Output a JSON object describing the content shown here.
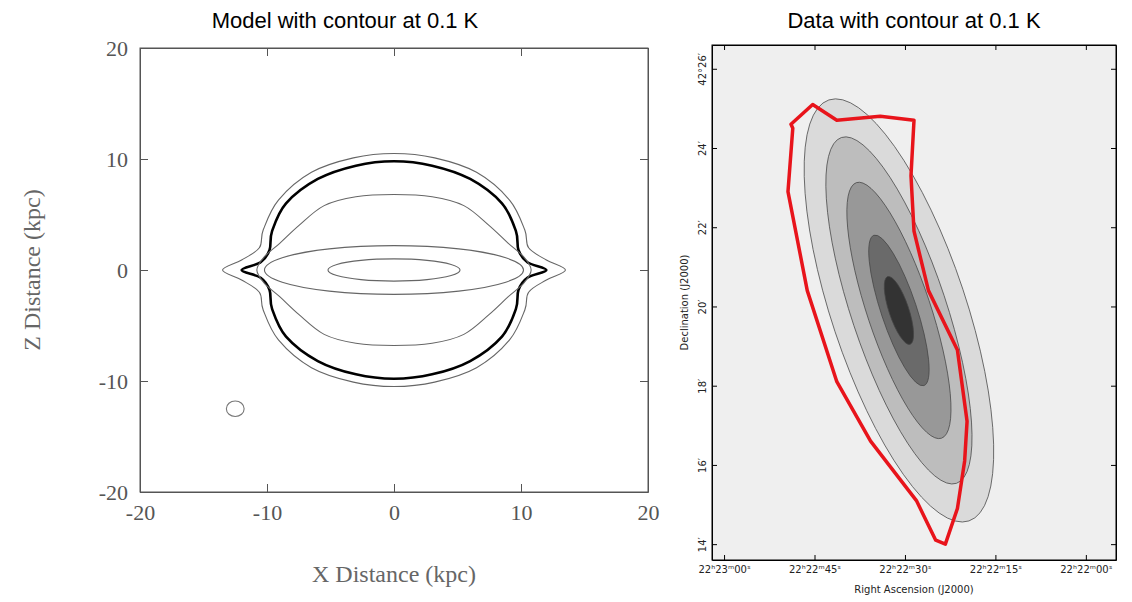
{
  "chart_data": [
    {
      "type": "contour",
      "title": "Model with contour at 0.1 K",
      "x_label": "X Distance (kpc)",
      "y_label": "Z Distance (kpc)",
      "xlim": [
        -20,
        20
      ],
      "ylim": [
        -20,
        20
      ],
      "xticks": [
        -20,
        -10,
        0,
        10,
        20
      ],
      "yticks": [
        -20,
        -10,
        0,
        10,
        20
      ],
      "series": [
        {
          "line_style": "thin",
          "color": "#666666",
          "x": [
            13.5,
            12,
            10.6,
            10.3,
            9.1,
            6.5,
            3.2,
            0,
            -3.2,
            -6.5,
            -9.1,
            -10.3,
            -10.6,
            -12,
            -13.5,
            -12,
            -10.6,
            -10.3,
            -9.1,
            -6.5,
            -3.2,
            0,
            3.2,
            6.5,
            9.1,
            10.3,
            10.6,
            12
          ],
          "y": [
            0,
            0.9,
            2,
            3.6,
            6.3,
            8.8,
            10.1,
            10.5,
            10.1,
            8.8,
            6.3,
            3.6,
            2,
            0.9,
            0,
            -0.9,
            -2,
            -3.6,
            -6.3,
            -8.8,
            -10.1,
            -10.5,
            -10.1,
            -8.8,
            -6.3,
            -3.6,
            -2,
            -0.9
          ]
        },
        {
          "line_style": "thick",
          "color": "#000000",
          "x": [
            12,
            10.5,
            9.8,
            9.6,
            8.5,
            6,
            3,
            0,
            -3,
            -6,
            -8.5,
            -9.6,
            -9.8,
            -10.5,
            -12,
            -10.5,
            -9.8,
            -9.6,
            -8.5,
            -6,
            -3,
            0,
            3,
            6,
            8.5,
            9.6,
            9.8,
            10.5
          ],
          "y": [
            0,
            0.7,
            1.8,
            3.5,
            6,
            8.2,
            9.4,
            9.8,
            9.4,
            8.2,
            6,
            3.5,
            1.8,
            0.7,
            0,
            -0.7,
            -1.8,
            -3.5,
            -6,
            -8.2,
            -9.4,
            -9.8,
            -9.4,
            -8.2,
            -6,
            -3.5,
            -1.8,
            -0.7
          ]
        },
        {
          "line_style": "thin",
          "color": "#666666",
          "x": [
            10.8,
            10.2,
            9,
            7.5,
            5.5,
            3,
            0,
            -3,
            -5.5,
            -7.5,
            -9,
            -10.2,
            -10.8,
            -10.2,
            -9,
            -7.5,
            -5.5,
            -3,
            0,
            3,
            5.5,
            7.5,
            9,
            10.2
          ],
          "y": [
            0,
            1.2,
            2.4,
            4,
            5.8,
            6.6,
            6.8,
            6.6,
            5.8,
            4,
            2.4,
            1.2,
            0,
            -1.2,
            -2.4,
            -4,
            -5.8,
            -6.6,
            -6.8,
            -6.6,
            -5.8,
            -4,
            -2.4,
            -1.2
          ]
        },
        {
          "line_style": "thin",
          "color": "#666666",
          "x": [
            10.2,
            8.8,
            5.1,
            0,
            -5.1,
            -8.8,
            -10.2,
            -8.8,
            -5.1,
            0,
            5.1,
            8.8
          ],
          "y": [
            0,
            1.1,
            1.9,
            2.2,
            1.9,
            1.1,
            0,
            -1.1,
            -1.9,
            -2.2,
            -1.9,
            -1.1
          ]
        },
        {
          "line_style": "thin",
          "color": "#666666",
          "x": [
            5.2,
            4.5,
            2.6,
            0,
            -2.6,
            -4.5,
            -5.2,
            -4.5,
            -2.6,
            0,
            2.6,
            4.5
          ],
          "y": [
            0,
            0.5,
            0.87,
            1,
            0.87,
            0.5,
            0,
            -0.5,
            -0.87,
            -1,
            -0.87,
            -0.5
          ]
        }
      ],
      "beam": {
        "x": -12.5,
        "y": -12.5,
        "diameter": 1.4
      }
    },
    {
      "type": "image",
      "title": "Data with contour at 0.1 K",
      "x_label": "Right Ascension (J2000)",
      "y_label": "Declination (J2000)",
      "xlim": [
        62,
        -5
      ],
      "ylim": [
        13.6,
        26.6
      ],
      "xticks": [
        {
          "value": 60,
          "label": "22ʰ23ᵐ00ˢ"
        },
        {
          "value": 45,
          "label": "22ʰ22ᵐ45ˢ"
        },
        {
          "value": 30,
          "label": "22ʰ22ᵐ30ˢ"
        },
        {
          "value": 15,
          "label": "22ʰ22ᵐ15ˢ"
        },
        {
          "value": 0,
          "label": "22ʰ22ᵐ00ˢ"
        }
      ],
      "yticks": [
        {
          "value": 26,
          "label": "42°26′"
        },
        {
          "value": 24,
          "label": "24′"
        },
        {
          "value": 22,
          "label": "22′"
        },
        {
          "value": 20,
          "label": "20′"
        },
        {
          "value": 18,
          "label": "18′"
        },
        {
          "value": 16,
          "label": "16′"
        },
        {
          "value": 14,
          "label": "14′"
        }
      ],
      "contours": {
        "ra": 31,
        "dec": 19.9,
        "position_angle": 18.4,
        "major": [
          5.6,
          4.6,
          3.4,
          2.0,
          0.9
        ],
        "minor": [
          1.7,
          1.2,
          0.8,
          0.45,
          0.25
        ]
      },
      "outline": {
        "color": "#e8141b",
        "ra": [
          48.9,
          45.3,
          41.3,
          34.1,
          28.5,
          29.0,
          28.5,
          26.1,
          21.3,
          19.7,
          20.1,
          21.3,
          23.3,
          24.9,
          28.1,
          35.7,
          41.3,
          46.2,
          49.4,
          48.6
        ],
        "dec": [
          24.6,
          25.1,
          24.7,
          24.8,
          24.7,
          23.3,
          21.9,
          20.4,
          18.9,
          17.1,
          16.1,
          14.9,
          14.0,
          14.1,
          15.1,
          16.6,
          18.1,
          20.4,
          22.9,
          24.5
        ]
      }
    }
  ]
}
